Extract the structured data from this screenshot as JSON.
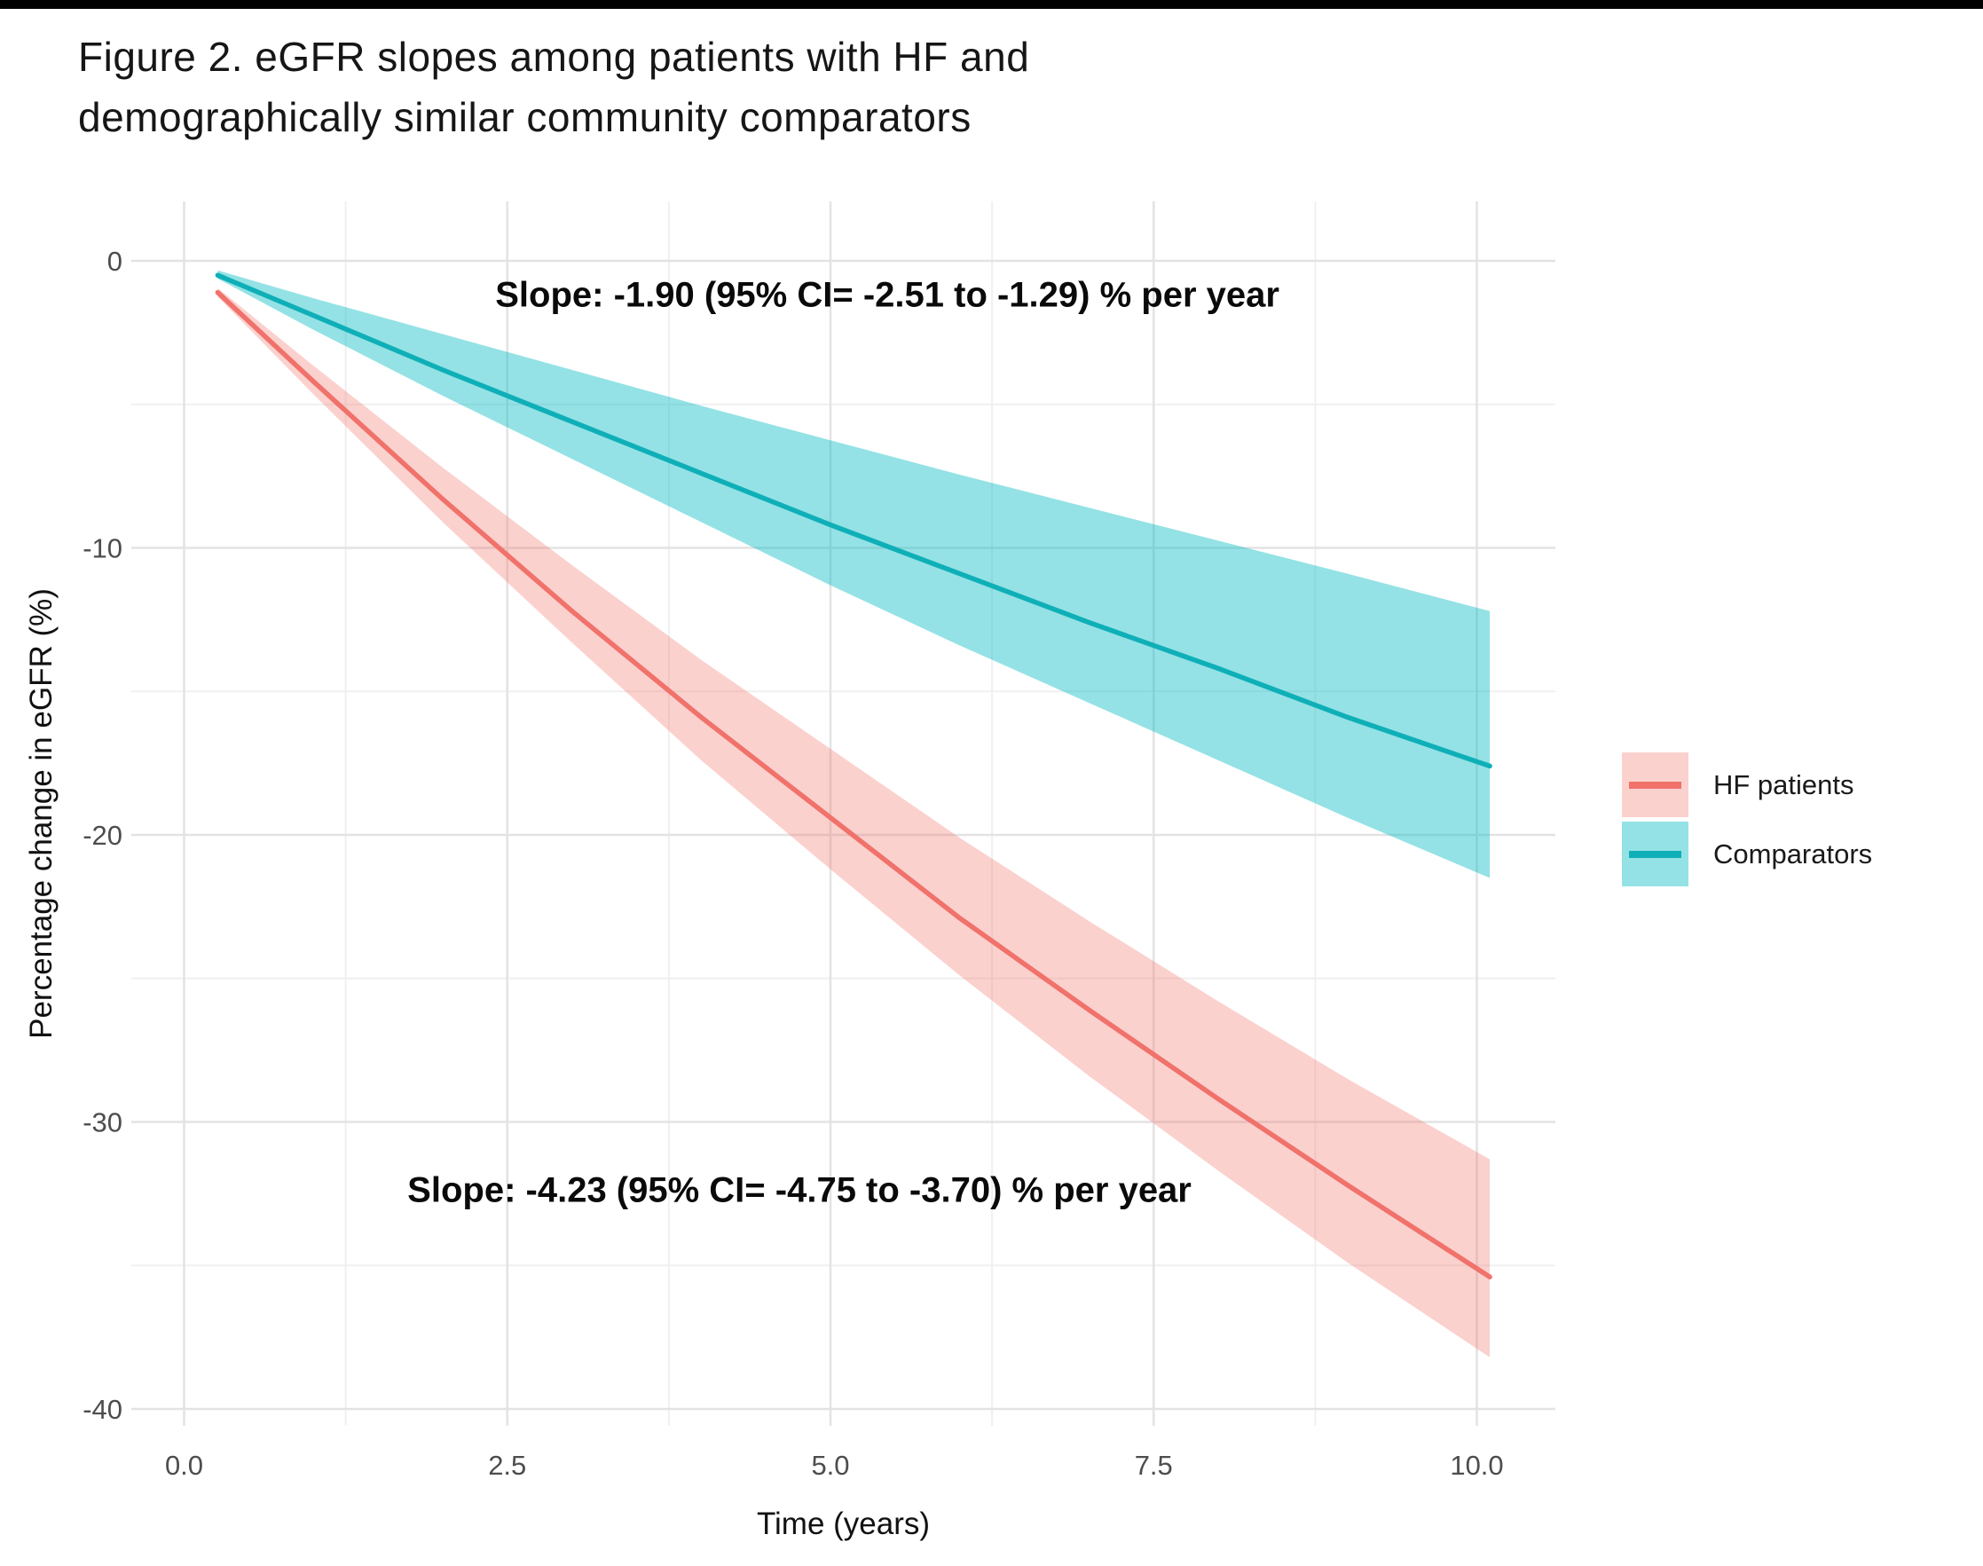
{
  "page": {
    "title_line1": "Figure 2. eGFR slopes among patients with HF and",
    "title_line2": "demographically similar community comparators"
  },
  "chart_data": {
    "type": "line",
    "title": "Figure 2. eGFR slopes among patients with HF and demographically similar community comparators",
    "xlabel": "Time (years)",
    "ylabel": "Percentage change in eGFR (%)",
    "xlim": [
      -0.4,
      10.6
    ],
    "ylim": [
      -40.6,
      2.1
    ],
    "grid": true,
    "legend_position": "right",
    "x_ticks": [
      0.0,
      2.5,
      5.0,
      7.5,
      10.0
    ],
    "x_tick_labels": [
      "0.0",
      "2.5",
      "5.0",
      "7.5",
      "10.0"
    ],
    "x_minor": [
      1.25,
      3.75,
      6.25,
      8.75
    ],
    "y_ticks": [
      0,
      -10,
      -20,
      -30,
      -40
    ],
    "y_tick_labels": [
      "0",
      "-10",
      "-20",
      "-30",
      "-40"
    ],
    "y_minor": [
      -5,
      -15,
      -25,
      -35
    ],
    "series": [
      {
        "name": "HF patients",
        "color": "#F0726B",
        "fill": "rgba(242,112,104,0.32)",
        "slope_per_year": -4.23,
        "ci_95": [
          -4.75,
          -3.7
        ],
        "x": [
          0.26,
          1,
          2,
          3,
          4,
          5,
          6,
          7,
          8,
          9,
          10.1
        ],
        "y": [
          -1.1,
          -4.2,
          -8.3,
          -12.2,
          -15.9,
          -19.4,
          -22.9,
          -26.1,
          -29.2,
          -32.2,
          -35.4
        ],
        "hi": [
          -0.95,
          -3.65,
          -7.2,
          -10.6,
          -13.9,
          -17.0,
          -20.1,
          -23.0,
          -25.8,
          -28.5,
          -31.3
        ],
        "lo": [
          -1.25,
          -4.65,
          -9.1,
          -13.3,
          -17.4,
          -21.2,
          -24.9,
          -28.4,
          -31.7,
          -34.9,
          -38.2
        ]
      },
      {
        "name": "Comparators",
        "color": "#0FAFB8",
        "fill": "rgba(0,186,193,0.42)",
        "slope_per_year": -1.9,
        "ci_95": [
          -2.51,
          -1.29
        ],
        "x": [
          0.26,
          1,
          2,
          3,
          4,
          5,
          6,
          7,
          8,
          9,
          10.1
        ],
        "y": [
          -0.5,
          -1.9,
          -3.8,
          -5.6,
          -7.4,
          -9.2,
          -10.9,
          -12.6,
          -14.2,
          -15.9,
          -17.6
        ],
        "hi": [
          -0.33,
          -1.3,
          -2.55,
          -3.8,
          -5.05,
          -6.25,
          -7.45,
          -8.6,
          -9.75,
          -10.9,
          -12.2
        ],
        "lo": [
          -0.62,
          -2.4,
          -4.7,
          -6.9,
          -9.1,
          -11.3,
          -13.4,
          -15.4,
          -17.4,
          -19.4,
          -21.5
        ]
      }
    ],
    "annotations": [
      {
        "text": "Slope: -1.90 (95% CI= -2.51 to -1.29) % per year",
        "x": 5.44,
        "y": -1.2
      },
      {
        "text": "Slope: -4.23 (95% CI= -4.75 to -3.70) % per year",
        "x": 4.76,
        "y": -32.4
      }
    ]
  }
}
